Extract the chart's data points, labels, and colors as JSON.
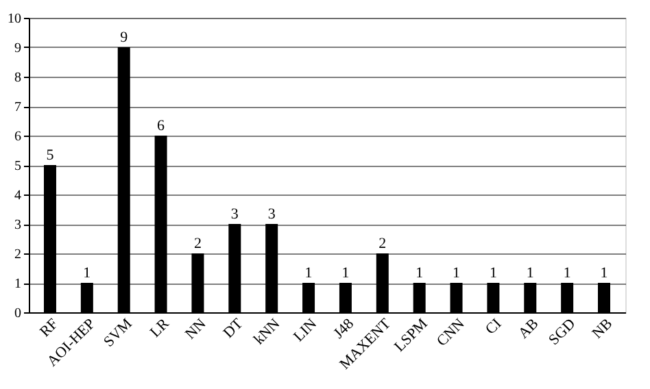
{
  "chart_data": {
    "type": "bar",
    "categories": [
      "RF",
      "AOI-HEP",
      "SVM",
      "LR",
      "NN",
      "DT",
      "kNN",
      "LIN",
      "J48",
      "MAXENT",
      "LSPM",
      "CNN",
      "CI",
      "AB",
      "SGD",
      "NB"
    ],
    "values": [
      5,
      1,
      9,
      6,
      2,
      3,
      3,
      1,
      1,
      2,
      1,
      1,
      1,
      1,
      1,
      1
    ],
    "color": "#000000",
    "ylim": [
      0,
      10
    ],
    "yticks": [
      0,
      1,
      2,
      3,
      4,
      5,
      6,
      7,
      8,
      9,
      10
    ],
    "grid": "y",
    "data_labels": true
  }
}
